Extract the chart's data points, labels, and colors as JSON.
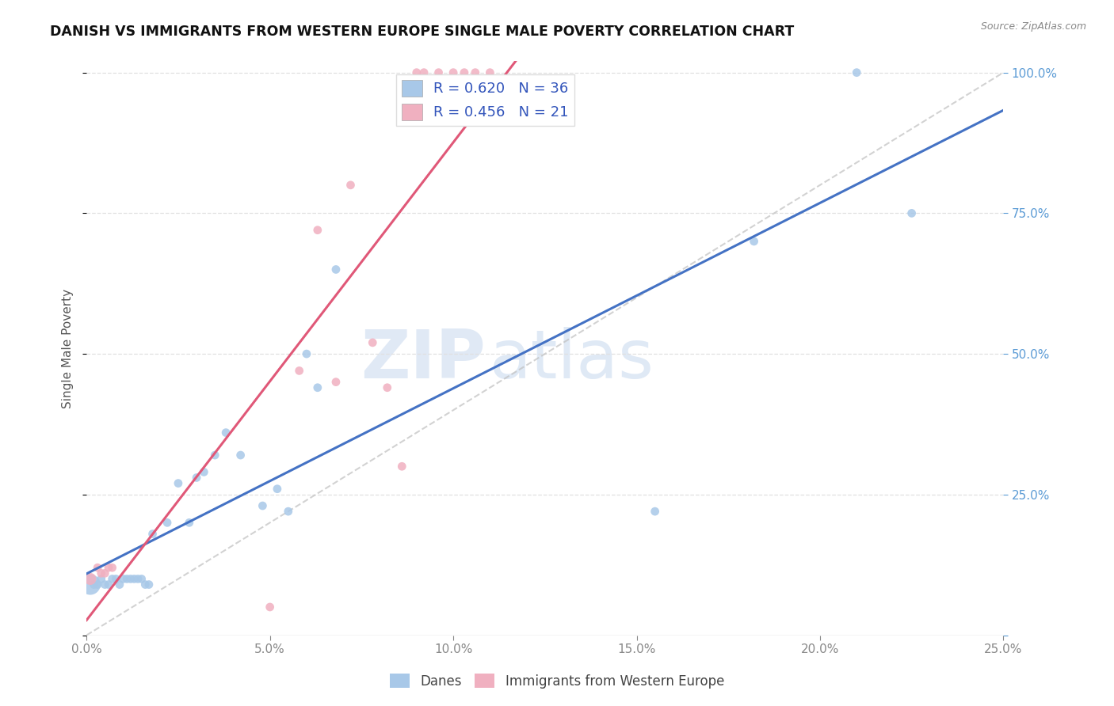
{
  "title": "DANISH VS IMMIGRANTS FROM WESTERN EUROPE SINGLE MALE POVERTY CORRELATION CHART",
  "source": "Source: ZipAtlas.com",
  "ylabel": "Single Male Poverty",
  "blue_color": "#a8c8e8",
  "pink_color": "#f0b0c0",
  "blue_line_color": "#4472c4",
  "pink_line_color": "#e05878",
  "diag_color": "#c0c0c0",
  "danes_R": 0.62,
  "danes_N": 36,
  "immigrants_R": 0.456,
  "immigrants_N": 21,
  "x_lim": [
    0.0,
    0.25
  ],
  "y_lim": [
    0.0,
    1.02
  ],
  "danes_x": [
    0.001,
    0.002,
    0.003,
    0.004,
    0.005,
    0.006,
    0.007,
    0.008,
    0.009,
    0.01,
    0.011,
    0.012,
    0.013,
    0.014,
    0.015,
    0.016,
    0.017,
    0.018,
    0.022,
    0.025,
    0.028,
    0.03,
    0.032,
    0.035,
    0.038,
    0.042,
    0.048,
    0.052,
    0.055,
    0.06,
    0.063,
    0.068,
    0.155,
    0.182,
    0.21,
    0.225
  ],
  "danes_y": [
    0.09,
    0.09,
    0.09,
    0.1,
    0.09,
    0.09,
    0.1,
    0.1,
    0.09,
    0.1,
    0.1,
    0.1,
    0.1,
    0.1,
    0.1,
    0.09,
    0.09,
    0.18,
    0.2,
    0.27,
    0.2,
    0.28,
    0.29,
    0.32,
    0.36,
    0.32,
    0.23,
    0.26,
    0.22,
    0.5,
    0.44,
    0.65,
    0.22,
    0.7,
    1.0,
    0.75
  ],
  "danes_size": [
    350,
    60,
    60,
    60,
    60,
    60,
    60,
    60,
    60,
    60,
    60,
    60,
    60,
    60,
    60,
    60,
    60,
    60,
    60,
    60,
    60,
    60,
    60,
    60,
    60,
    60,
    60,
    60,
    60,
    60,
    60,
    60,
    60,
    60,
    60,
    60
  ],
  "imm_x": [
    0.001,
    0.003,
    0.004,
    0.005,
    0.006,
    0.007,
    0.05,
    0.058,
    0.063,
    0.068,
    0.072,
    0.078,
    0.082,
    0.086,
    0.09,
    0.092,
    0.096,
    0.1,
    0.103,
    0.106,
    0.11
  ],
  "imm_y": [
    0.1,
    0.12,
    0.11,
    0.11,
    0.12,
    0.12,
    0.05,
    0.47,
    0.72,
    0.45,
    0.8,
    0.52,
    0.44,
    0.3,
    1.0,
    1.0,
    1.0,
    1.0,
    1.0,
    1.0,
    1.0
  ],
  "imm_size": [
    120,
    60,
    60,
    60,
    60,
    60,
    60,
    60,
    60,
    60,
    60,
    60,
    60,
    60,
    60,
    60,
    60,
    60,
    60,
    60,
    60
  ],
  "watermark_zip": "ZIP",
  "watermark_atlas": "atlas",
  "background_color": "#ffffff",
  "grid_color": "#e0e0e0",
  "tick_color_y": "#5b9bd5",
  "tick_color_x": "#888888",
  "legend_label_color": "#3355bb"
}
